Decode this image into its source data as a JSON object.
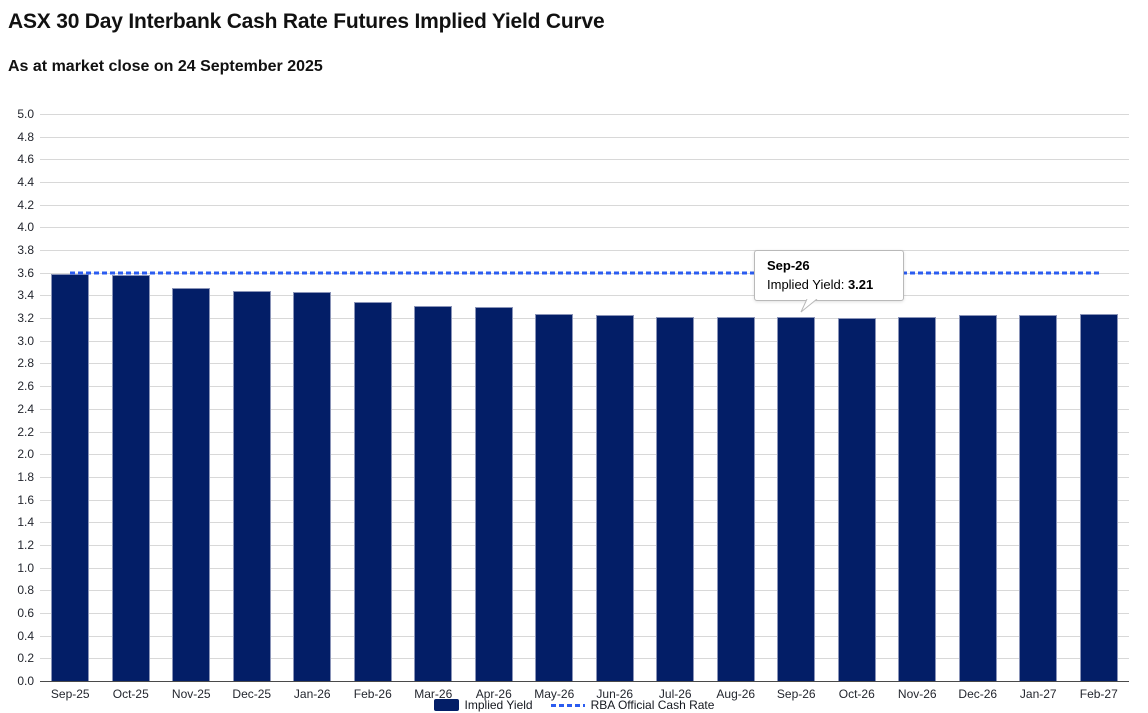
{
  "chart_data": {
    "type": "bar",
    "title": "ASX 30 Day Interbank Cash Rate Futures Implied Yield Curve",
    "subtitle": "As at market close on 24 September 2025",
    "categories": [
      "Sep-25",
      "Oct-25",
      "Nov-25",
      "Dec-25",
      "Jan-26",
      "Feb-26",
      "Mar-26",
      "Apr-26",
      "May-26",
      "Jun-26",
      "Jul-26",
      "Aug-26",
      "Sep-26",
      "Oct-26",
      "Nov-26",
      "Dec-26",
      "Jan-27",
      "Feb-27"
    ],
    "series": [
      {
        "name": "Implied Yield",
        "type": "column",
        "color": "#031e67",
        "border_color": "#8a94b8",
        "values": [
          3.59,
          3.58,
          3.47,
          3.44,
          3.43,
          3.34,
          3.31,
          3.3,
          3.24,
          3.23,
          3.21,
          3.21,
          3.21,
          3.2,
          3.21,
          3.23,
          3.23,
          3.24
        ]
      },
      {
        "name": "RBA Official Cash Rate",
        "type": "dashed-line",
        "color": "#2b5cf0",
        "value": 3.6
      }
    ],
    "ylim": [
      0,
      5.0
    ],
    "ytick_step": 0.2,
    "ytick_labels": [
      "5.0",
      "4.8",
      "4.6",
      "4.4",
      "4.2",
      "4.0",
      "3.8",
      "3.6",
      "3.4",
      "3.2",
      "3.0",
      "2.8",
      "2.6",
      "2.4",
      "2.2",
      "2.0",
      "1.8",
      "1.6",
      "1.4",
      "1.2",
      "1.0",
      "0.8",
      "0.6",
      "0.4",
      "0.2",
      "0.0"
    ],
    "grid": true,
    "legend_position": "bottom",
    "tooltip": {
      "category": "Sep-26",
      "label": "Implied Yield: ",
      "value": "3.21"
    }
  }
}
